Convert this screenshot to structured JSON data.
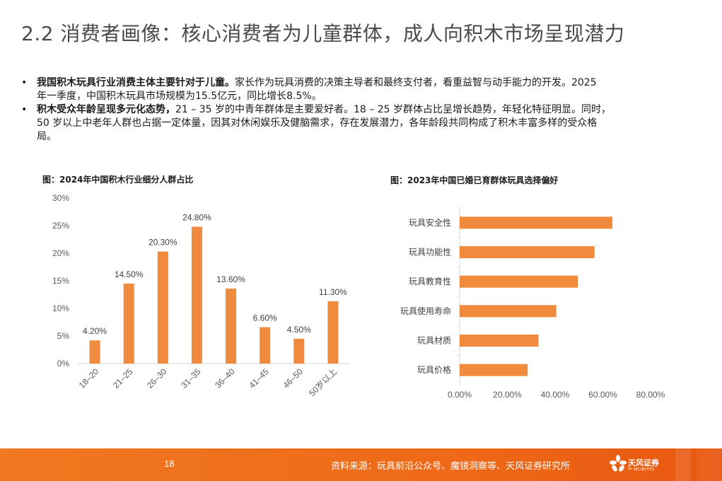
{
  "title": "2.2 消费者画像：核心消费者为儿童群体，成人向积木市场呈现潜力",
  "bullets": [
    {
      "bold": "我国积木玩具行业消费主体主要针对于儿童。",
      "line1": "家长作为玩具消费的决策主导者和最终支付者，看重益智与动手能力的开发。2025",
      "line2": "年一季度，中国积木玩具市场规模为15.5亿元，同比增长8.5%。"
    },
    {
      "bold": "积木受众年龄呈现多元化态势，",
      "line1": "21 – 35 岁的中青年群体是主要爱好者。18 – 25 岁群体占比呈增长趋势，年轻化特征明显。同时，",
      "line2": "50   岁以上中老年人群也占据一定体量，因其对休闲娱乐及健脑需求，存在发展潜力，各年龄段共同构成了积木丰富多样的受众格",
      "line3": "局。"
    }
  ],
  "chart_data": [
    {
      "type": "bar",
      "title": "图：2024年中国积木行业细分人群占比",
      "categories": [
        "18–20",
        "21–25",
        "26–30",
        "31–35",
        "36–40",
        "41–45",
        "46–50",
        "50岁以上"
      ],
      "values": [
        4.2,
        14.5,
        20.3,
        24.8,
        13.6,
        6.6,
        4.5,
        11.3
      ],
      "value_labels": [
        "4.20%",
        "14.50%",
        "20.30%",
        "24.80%",
        "13.60%",
        "6.60%",
        "4.50%",
        "11.30%"
      ],
      "ylim": [
        0,
        30
      ],
      "yticks": [
        "0%",
        "5%",
        "10%",
        "15%",
        "20%",
        "25%",
        "30%"
      ],
      "color": "#f08a3c"
    },
    {
      "type": "bar",
      "orientation": "horizontal",
      "title": "图：2023年中国已婚已育群体玩具选择偏好",
      "categories": [
        "玩具安全性",
        "玩具功能性",
        "玩具教育性",
        "玩具使用寿命",
        "玩具材质",
        "玩具价格"
      ],
      "values": [
        64.0,
        56.5,
        49.5,
        40.5,
        33.0,
        28.5
      ],
      "xlim": [
        0,
        80
      ],
      "xticks": [
        "0.00%",
        "20.00%",
        "40.00%",
        "60.00%",
        "80.00%"
      ],
      "color": "#f08a3c"
    }
  ],
  "footer": {
    "page_number": "18",
    "source": "资料来源：玩具前沿公众号、魔镜洞察等、天风证券研究所",
    "logo_name": "天风证券",
    "logo_sub": "TF SECURITIES",
    "color": "#ee6a18"
  }
}
